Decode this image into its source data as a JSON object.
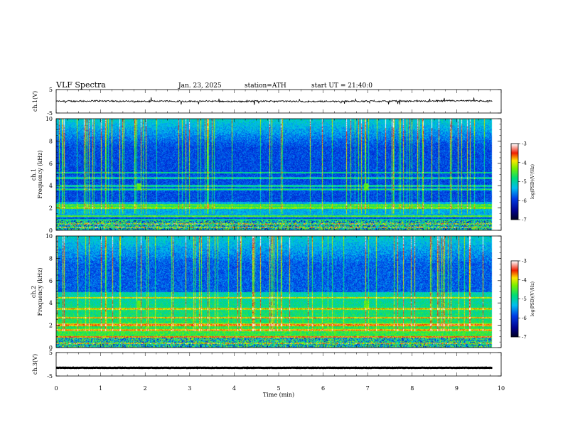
{
  "header": {
    "title": "VLF Spectra",
    "date": "Jan. 23, 2025",
    "station": "station=ATH",
    "start": "start UT = 21:40:0"
  },
  "chart_data": [
    {
      "type": "line",
      "name": "ch1-waveform",
      "ylabel": "ch.1(V)",
      "ylim": [
        -5,
        5
      ],
      "yticks": [
        "5",
        "-5"
      ],
      "xlim": [
        0,
        10
      ],
      "approx_level": 0,
      "noise_amplitude": 0.6
    },
    {
      "type": "heatmap",
      "name": "ch1-spectrogram",
      "ylabel": "ch.1\nFrequency (kHz)",
      "ylim": [
        0,
        10
      ],
      "yticks": [
        "0",
        "2",
        "4",
        "6",
        "8",
        "10"
      ],
      "xlim": [
        0,
        10
      ],
      "data_xmax": 9.8,
      "features": {
        "bands_khz": [
          0.3,
          0.6,
          1.0,
          1.3,
          2.0,
          2.1,
          2.3,
          3.7,
          4.0,
          4.7,
          5.2
        ],
        "bright_blobs": [
          {
            "t": 1.85,
            "f": 3.9
          },
          {
            "t": 6.95,
            "f": 3.9
          }
        ],
        "spike_lines_t": [
          0.15,
          1.0,
          1.9,
          2.9,
          3.4,
          4.8,
          5.05,
          6.95,
          7.8,
          8.6,
          9.3
        ]
      },
      "colorbar": {
        "label": "log(PSD)(V²/Hz)",
        "ticks": [
          "-3",
          "-4",
          "-5",
          "-6",
          "-7"
        ],
        "range": [
          -7,
          -3
        ]
      }
    },
    {
      "type": "heatmap",
      "name": "ch2-spectrogram",
      "ylabel": "ch.2\nFrequency (kHz)",
      "ylim": [
        0,
        10
      ],
      "yticks": [
        "0",
        "2",
        "4",
        "6",
        "8",
        "10"
      ],
      "xlim": [
        0,
        10
      ],
      "data_xmax": 9.8,
      "features": {
        "bands_khz": [
          0.4,
          1.0,
          1.6,
          2.0,
          2.1,
          2.7,
          3.5,
          4.5
        ],
        "bright_blobs": [
          {
            "t": 1.85,
            "f": 3.9
          },
          {
            "t": 6.95,
            "f": 3.9
          }
        ],
        "spike_lines_t": [
          0.15,
          1.0,
          1.9,
          2.9,
          3.4,
          4.8,
          5.05,
          6.95,
          7.8,
          8.6,
          9.3
        ]
      },
      "colorbar": {
        "label": "log(PSD)(V²/Hz)",
        "ticks": [
          "-3",
          "-4",
          "-5",
          "-6",
          "-7"
        ],
        "range": [
          -7,
          -3
        ]
      }
    },
    {
      "type": "line",
      "name": "ch3-waveform",
      "ylabel": "ch.3(V)",
      "ylim": [
        -5,
        5
      ],
      "yticks": [
        "5",
        "-5"
      ],
      "xlim": [
        0,
        10
      ],
      "approx_level": -1.5,
      "noise_amplitude": 0.15
    }
  ],
  "xaxis": {
    "label": "Time (min)",
    "ticks": [
      "0",
      "1",
      "2",
      "3",
      "4",
      "5",
      "6",
      "7",
      "8",
      "9",
      "10"
    ]
  }
}
